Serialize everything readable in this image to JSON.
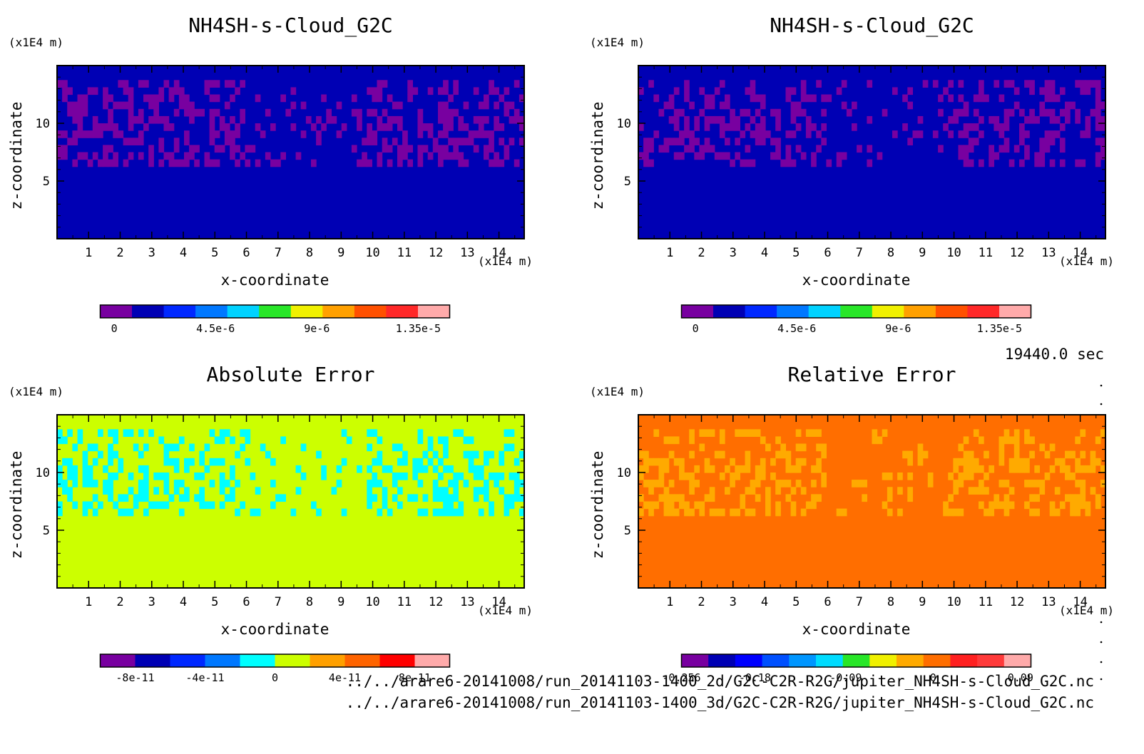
{
  "time_label": "19440.0 sec",
  "footer": {
    "file1": "../../arare6-20141008/run_20141103-1400_2d/G2C-C2R-R2G/jupiter_NH4SH-s-Cloud_G2C.nc",
    "file2": "../../arare6-20141008/run_20141103-1400_3d/G2C-C2R-R2G/jupiter_NH4SH-s-Cloud_G2C.nc"
  },
  "chart_data": [
    {
      "type": "heatmap",
      "title": "NH4SH-s-Cloud_G2C",
      "xlabel": "x-coordinate",
      "ylabel": "z-coordinate",
      "x_unit": "(x1E4 m)",
      "z_unit": "(x1E4 m)",
      "xlim": [
        0,
        14.8
      ],
      "zlim": [
        0,
        15
      ],
      "x_ticks": [
        1,
        2,
        3,
        4,
        5,
        6,
        7,
        8,
        9,
        10,
        11,
        12,
        13,
        14
      ],
      "z_ticks": [
        5,
        10
      ],
      "background_color": "#0000b4",
      "cloud_color": "#7800a0",
      "colorbar": {
        "colors": [
          "#7800a0",
          "#0000b4",
          "#0028ff",
          "#0078ff",
          "#00d2ff",
          "#28e628",
          "#f0f000",
          "#ffa000",
          "#ff5000",
          "#ff2828",
          "#ffaaaa"
        ],
        "tick_labels": [
          "0",
          "4.5e-6",
          "9e-6",
          "1.35e-5"
        ],
        "tick_positions": [
          0.04,
          0.33,
          0.62,
          0.91
        ]
      }
    },
    {
      "type": "heatmap",
      "title": "NH4SH-s-Cloud_G2C",
      "xlabel": "x-coordinate",
      "ylabel": "z-coordinate",
      "x_unit": "(x1E4 m)",
      "z_unit": "(x1E4 m)",
      "xlim": [
        0,
        14.8
      ],
      "zlim": [
        0,
        15
      ],
      "x_ticks": [
        1,
        2,
        3,
        4,
        5,
        6,
        7,
        8,
        9,
        10,
        11,
        12,
        13,
        14
      ],
      "z_ticks": [
        5,
        10
      ],
      "background_color": "#0000b4",
      "cloud_color": "#7800a0",
      "colorbar": {
        "colors": [
          "#7800a0",
          "#0000b4",
          "#0028ff",
          "#0078ff",
          "#00d2ff",
          "#28e628",
          "#f0f000",
          "#ffa000",
          "#ff5000",
          "#ff2828",
          "#ffaaaa"
        ],
        "tick_labels": [
          "0",
          "4.5e-6",
          "9e-6",
          "1.35e-5"
        ],
        "tick_positions": [
          0.04,
          0.33,
          0.62,
          0.91
        ]
      }
    },
    {
      "type": "heatmap",
      "title": "Absolute Error",
      "xlabel": "x-coordinate",
      "ylabel": "z-coordinate",
      "x_unit": "(x1E4 m)",
      "z_unit": "(x1E4 m)",
      "xlim": [
        0,
        14.8
      ],
      "zlim": [
        0,
        15
      ],
      "x_ticks": [
        1,
        2,
        3,
        4,
        5,
        6,
        7,
        8,
        9,
        10,
        11,
        12,
        13,
        14
      ],
      "z_ticks": [
        5,
        10
      ],
      "background_color": "#ccff00",
      "cloud_color": "#00ffff",
      "colorbar": {
        "colors": [
          "#7800a0",
          "#0000b4",
          "#0028ff",
          "#0078ff",
          "#00ffff",
          "#ccff00",
          "#ffa000",
          "#ff6400",
          "#ff0000",
          "#ffaaaa"
        ],
        "tick_labels": [
          "-8e-11",
          "-4e-11",
          "0",
          "4e-11",
          "8e-11"
        ],
        "tick_positions": [
          0.1,
          0.3,
          0.5,
          0.7,
          0.9
        ]
      }
    },
    {
      "type": "heatmap",
      "title": "Relative Error",
      "xlabel": "x-coordinate",
      "ylabel": "z-coordinate",
      "x_unit": "(x1E4 m)",
      "z_unit": "(x1E4 m)",
      "xlim": [
        0,
        14.8
      ],
      "zlim": [
        0,
        15
      ],
      "x_ticks": [
        1,
        2,
        3,
        4,
        5,
        6,
        7,
        8,
        9,
        10,
        11,
        12,
        13,
        14
      ],
      "z_ticks": [
        5,
        10
      ],
      "background_color": "#ff6e00",
      "cloud_color": "#ffaa00",
      "colorbar": {
        "colors": [
          "#7800a0",
          "#0000b4",
          "#0000ff",
          "#0050ff",
          "#0096ff",
          "#00dcff",
          "#28e628",
          "#f0f000",
          "#ffaa00",
          "#ff6e00",
          "#ff2020",
          "#ff3a3a",
          "#ffaaaa"
        ],
        "tick_labels": [
          "-0.256",
          "-0.18",
          "-0.09",
          "0",
          "0.09"
        ],
        "tick_positions": [
          0.0,
          0.21,
          0.47,
          0.72,
          0.97
        ]
      }
    }
  ]
}
